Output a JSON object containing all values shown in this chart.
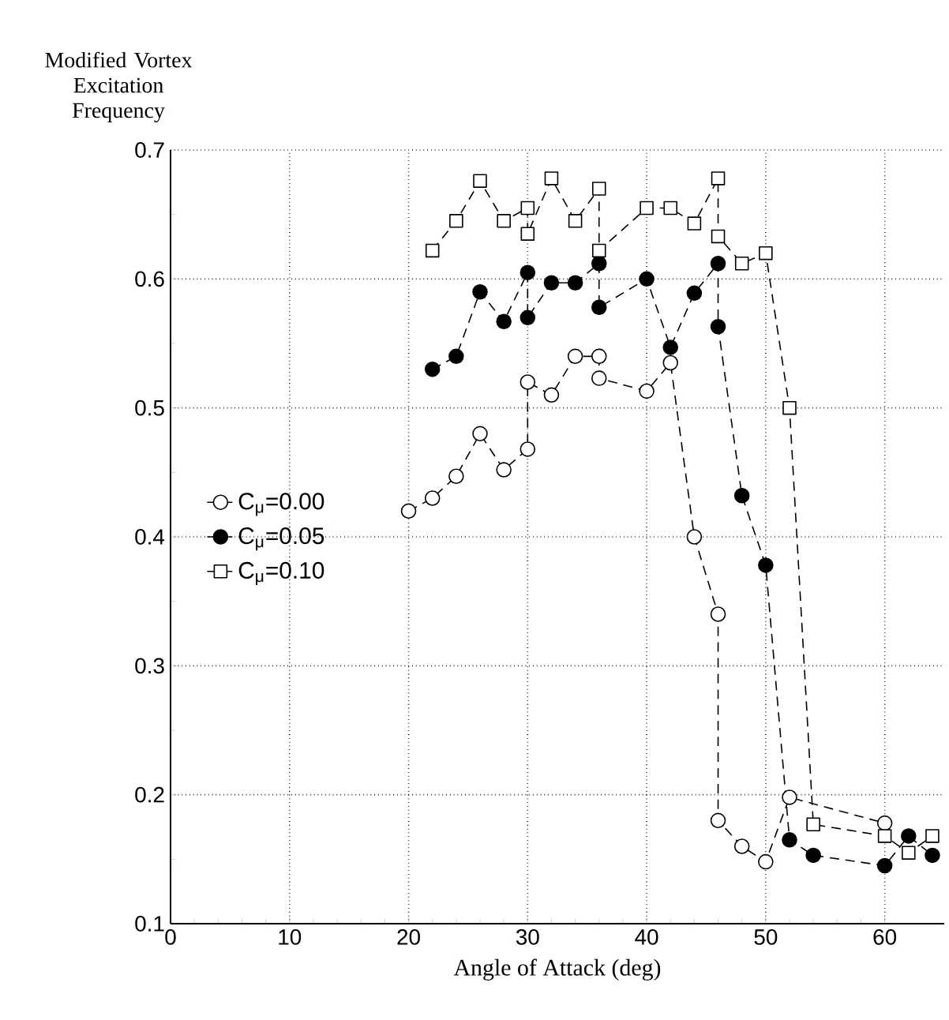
{
  "chart_data": {
    "type": "line",
    "ylabel": "Modified Vortex Excitation Frequency",
    "xlabel": "Angle of Attack (deg)",
    "xlim": [
      0,
      65
    ],
    "ylim": [
      0.1,
      0.7
    ],
    "xticks": [
      0,
      10,
      20,
      30,
      40,
      50,
      60
    ],
    "yticks": [
      0.1,
      0.2,
      0.3,
      0.4,
      0.5,
      0.6,
      0.7
    ],
    "grid": true,
    "legend": "left",
    "line_style": "dashed",
    "series": [
      {
        "name": "C$_{μ}$=0.00",
        "color": "#000000",
        "marker": "circle open",
        "x": [
          20,
          22,
          24,
          26,
          28,
          30,
          30,
          32,
          34,
          36,
          36,
          40,
          42,
          44,
          46,
          46,
          48,
          50,
          52,
          60
        ],
        "values": [
          0.42,
          0.43,
          0.447,
          0.48,
          0.452,
          0.468,
          0.52,
          0.51,
          0.54,
          0.54,
          0.523,
          0.513,
          0.535,
          0.4,
          0.34,
          0.18,
          0.16,
          0.148,
          0.198,
          0.178
        ]
      },
      {
        "name": "C$_{μ}$=0.05",
        "color": "#000000",
        "marker": "circle",
        "x": [
          22,
          24,
          26,
          28,
          30,
          30,
          32,
          34,
          36,
          36,
          40,
          42,
          44,
          46,
          46,
          48,
          50,
          52,
          54,
          60,
          62,
          64
        ],
        "values": [
          0.53,
          0.54,
          0.59,
          0.567,
          0.605,
          0.57,
          0.597,
          0.597,
          0.612,
          0.578,
          0.6,
          0.547,
          0.589,
          0.612,
          0.563,
          0.432,
          0.378,
          0.165,
          0.153,
          0.145,
          0.168,
          0.153
        ]
      },
      {
        "name": "C$_{μ}$=0.10",
        "color": "#000000",
        "marker": "square open",
        "x": [
          22,
          24,
          26,
          28,
          30,
          30,
          32,
          34,
          36,
          36,
          40,
          42,
          44,
          46,
          46,
          48,
          50,
          52,
          54,
          60,
          62,
          64
        ],
        "values": [
          0.622,
          0.645,
          0.676,
          0.645,
          0.655,
          0.635,
          0.678,
          0.645,
          0.67,
          0.622,
          0.655,
          0.655,
          0.643,
          0.678,
          0.633,
          0.612,
          0.62,
          0.5,
          0.177,
          0.168,
          0.155,
          0.168
        ]
      }
    ]
  }
}
